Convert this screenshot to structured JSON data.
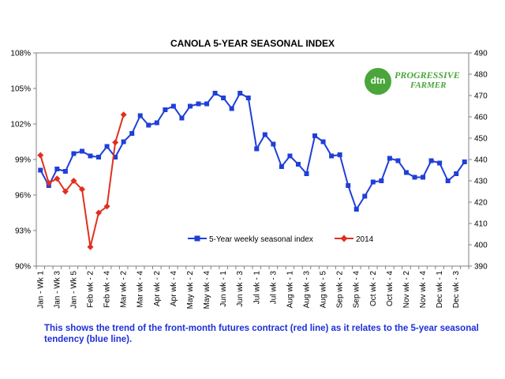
{
  "chart_data": {
    "type": "line",
    "title": "CANOLA 5-YEAR SEASONAL INDEX",
    "y_left": {
      "ticks": [
        "90%",
        "93%",
        "96%",
        "99%",
        "102%",
        "105%",
        "108%"
      ],
      "min": 90,
      "max": 108
    },
    "y_right": {
      "ticks": [
        "390",
        "400",
        "410",
        "420",
        "430",
        "440",
        "450",
        "460",
        "470",
        "480",
        "490"
      ],
      "min": 390,
      "max": 490
    },
    "x_labels": [
      "Jan - Wk 1",
      "Jan - Wk 3",
      "Jan - Wk 5",
      "Feb wk - 2",
      "Feb wk - 4",
      "Mar wk - 2",
      "Mar wk - 4",
      "Apr wk - 2",
      "Apr wk - 4",
      "May wk - 2",
      "May wk - 4",
      "Jun wk - 1",
      "Jun wk - 3",
      "Jul wk - 1",
      "Jul wk - 3",
      "Aug wk - 1",
      "Aug wk - 3",
      "Aug wk - 5",
      "Sep wk - 2",
      "Sep wk - 4",
      "Oct wk - 2",
      "Oct wk - 4",
      "Nov wk - 2",
      "Nov wk - 4",
      "Dec wk - 1",
      "Dec wk - 3"
    ],
    "series": [
      {
        "name": "5-Year weekly seasonal index",
        "axis": "left",
        "color": "#1f3fd8",
        "marker": "square",
        "values": [
          98.1,
          96.8,
          98.2,
          98.0,
          99.5,
          99.7,
          99.3,
          99.2,
          100.1,
          99.2,
          100.5,
          101.2,
          102.7,
          101.9,
          102.1,
          103.2,
          103.5,
          102.5,
          103.5,
          103.7,
          103.7,
          104.6,
          104.2,
          103.3,
          104.6,
          104.2,
          99.9,
          101.1,
          100.3,
          98.4,
          99.3,
          98.6,
          97.8,
          101.0,
          100.5,
          99.3,
          99.4,
          96.8,
          94.8,
          95.9,
          97.1,
          97.2,
          99.1,
          98.9,
          97.9,
          97.5,
          97.5,
          98.9,
          98.7,
          97.2,
          97.8,
          98.8
        ]
      },
      {
        "name": "2014",
        "axis": "right",
        "color": "#e03020",
        "marker": "diamond",
        "values": [
          442,
          429,
          431,
          425,
          430,
          426,
          399,
          415,
          418,
          448,
          461
        ]
      }
    ],
    "legend_position": "bottom-center",
    "grid": false
  },
  "caption": "This shows the trend of the front-month futures contract (red line) as it relates to the 5-year seasonal tendency (blue line).",
  "logo": {
    "badge_text": "dtn",
    "line1": "PROGRESSIVE",
    "line2": "FARMER"
  },
  "colors": {
    "axis_text": "#000000",
    "caption": "#1e2fd8",
    "logo": "#4aa63a"
  }
}
